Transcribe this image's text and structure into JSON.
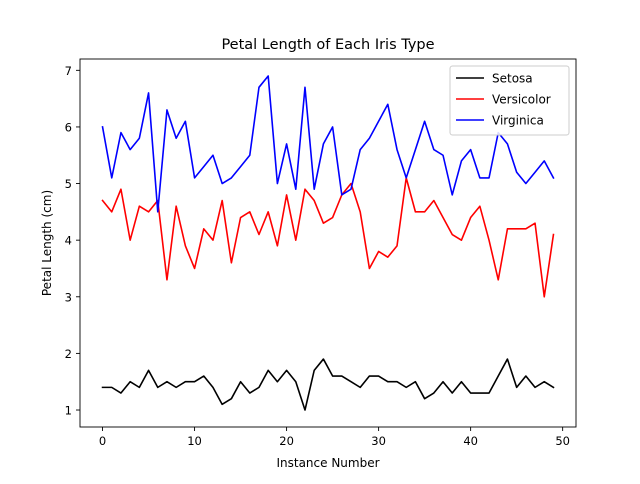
{
  "chart_data": {
    "type": "line",
    "title": "Petal Length of Each Iris Type",
    "xlabel": "Instance Number",
    "ylabel": "Petal Length (cm)",
    "xlim": [
      -2.45,
      51.45
    ],
    "ylim": [
      0.7,
      7.2
    ],
    "xticks": [
      0,
      10,
      20,
      30,
      40,
      50
    ],
    "yticks": [
      1,
      2,
      3,
      4,
      5,
      6,
      7
    ],
    "grid": false,
    "legend_position": "top-right",
    "series": [
      {
        "name": "Setosa",
        "color": "#000000",
        "values": [
          1.4,
          1.4,
          1.3,
          1.5,
          1.4,
          1.7,
          1.4,
          1.5,
          1.4,
          1.5,
          1.5,
          1.6,
          1.4,
          1.1,
          1.2,
          1.5,
          1.3,
          1.4,
          1.7,
          1.5,
          1.7,
          1.5,
          1.0,
          1.7,
          1.9,
          1.6,
          1.6,
          1.5,
          1.4,
          1.6,
          1.6,
          1.5,
          1.5,
          1.4,
          1.5,
          1.2,
          1.3,
          1.5,
          1.3,
          1.5,
          1.3,
          1.3,
          1.3,
          1.6,
          1.9,
          1.4,
          1.6,
          1.4,
          1.5,
          1.4
        ]
      },
      {
        "name": "Versicolor",
        "color": "#ff0000",
        "values": [
          4.7,
          4.5,
          4.9,
          4.0,
          4.6,
          4.5,
          4.7,
          3.3,
          4.6,
          3.9,
          3.5,
          4.2,
          4.0,
          4.7,
          3.6,
          4.4,
          4.5,
          4.1,
          4.5,
          3.9,
          4.8,
          4.0,
          4.9,
          4.7,
          4.3,
          4.4,
          4.8,
          5.0,
          4.5,
          3.5,
          3.8,
          3.7,
          3.9,
          5.1,
          4.5,
          4.5,
          4.7,
          4.4,
          4.1,
          4.0,
          4.4,
          4.6,
          4.0,
          3.3,
          4.2,
          4.2,
          4.2,
          4.3,
          3.0,
          4.1
        ]
      },
      {
        "name": "Virginica",
        "color": "#0000ff",
        "values": [
          6.0,
          5.1,
          5.9,
          5.6,
          5.8,
          6.6,
          4.5,
          6.3,
          5.8,
          6.1,
          5.1,
          5.3,
          5.5,
          5.0,
          5.1,
          5.3,
          5.5,
          6.7,
          6.9,
          5.0,
          5.7,
          4.9,
          6.7,
          4.9,
          5.7,
          6.0,
          4.8,
          4.9,
          5.6,
          5.8,
          6.1,
          6.4,
          5.6,
          5.1,
          5.6,
          6.1,
          5.6,
          5.5,
          4.8,
          5.4,
          5.6,
          5.1,
          5.1,
          5.9,
          5.7,
          5.2,
          5.0,
          5.2,
          5.4,
          5.1
        ]
      }
    ]
  }
}
